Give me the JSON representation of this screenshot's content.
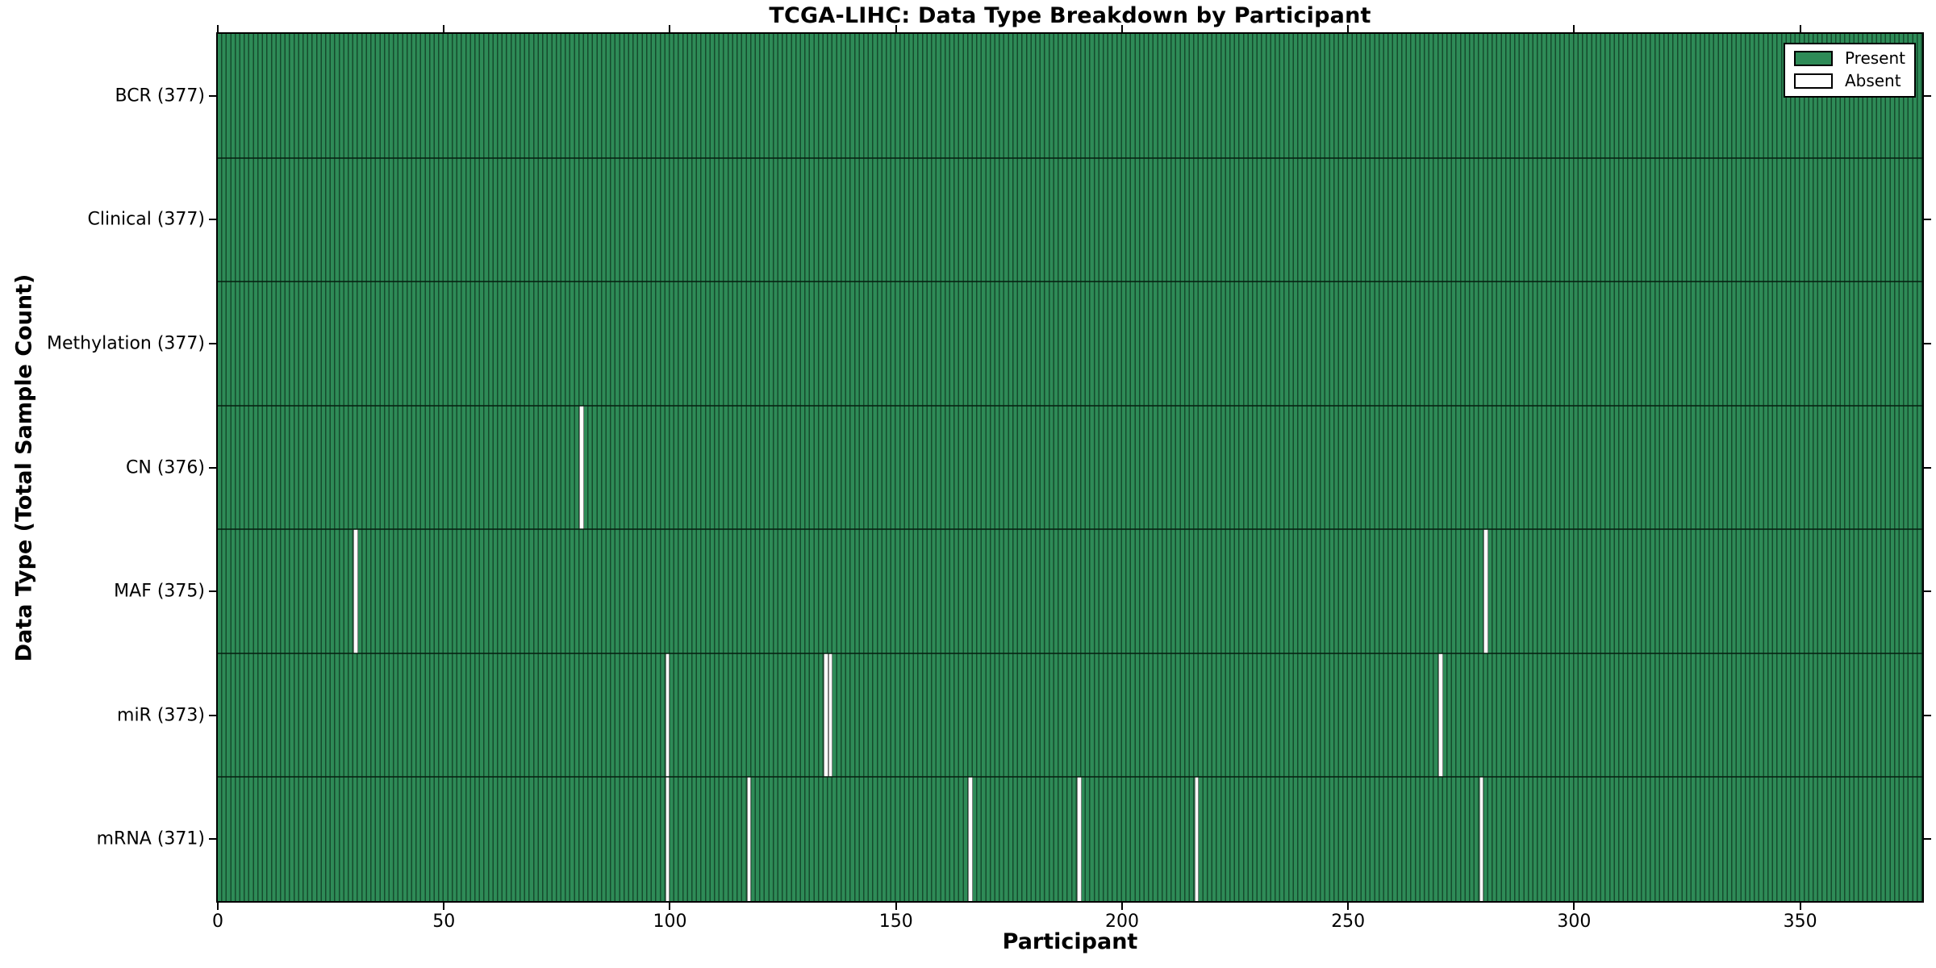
{
  "title": "TCGA-LIHC: Data Type Breakdown by Participant",
  "axes": {
    "xlabel": "Participant",
    "ylabel": "Data Type (Total Sample Count)"
  },
  "legend": {
    "present_label": "Present",
    "absent_label": "Absent"
  },
  "colors": {
    "present": "#2e8b57",
    "absent": "#ffffff",
    "bar_edge": "rgba(0,22,10,0.55)",
    "axis": "#000000"
  },
  "chart_data": {
    "type": "heatmap",
    "title": "TCGA-LIHC: Data Type Breakdown by Participant",
    "xlabel": "Participant",
    "ylabel": "Data Type (Total Sample Count)",
    "xlim": [
      0,
      377
    ],
    "x_ticks": [
      0,
      50,
      100,
      150,
      200,
      250,
      300,
      350
    ],
    "n_participants": 377,
    "grid": false,
    "legend_position": "upper right",
    "legend": [
      {
        "label": "Present",
        "color": "#2e8b57"
      },
      {
        "label": "Absent",
        "color": "#ffffff"
      }
    ],
    "rows": [
      {
        "label": "BCR (377)",
        "data_type": "BCR",
        "present_count": 377,
        "absent_participants": []
      },
      {
        "label": "Clinical (377)",
        "data_type": "Clinical",
        "present_count": 377,
        "absent_participants": []
      },
      {
        "label": "Methylation (377)",
        "data_type": "Methylation",
        "present_count": 377,
        "absent_participants": []
      },
      {
        "label": "CN (376)",
        "data_type": "CN",
        "present_count": 376,
        "absent_participants": [
          80
        ]
      },
      {
        "label": "MAF (375)",
        "data_type": "MAF",
        "present_count": 375,
        "absent_participants": [
          30,
          280
        ]
      },
      {
        "label": "miR (373)",
        "data_type": "miR",
        "present_count": 373,
        "absent_participants": [
          99,
          134,
          135,
          270
        ]
      },
      {
        "label": "mRNA (371)",
        "data_type": "mRNA",
        "present_count": 371,
        "absent_participants": [
          99,
          117,
          166,
          190,
          216,
          279
        ]
      }
    ]
  }
}
